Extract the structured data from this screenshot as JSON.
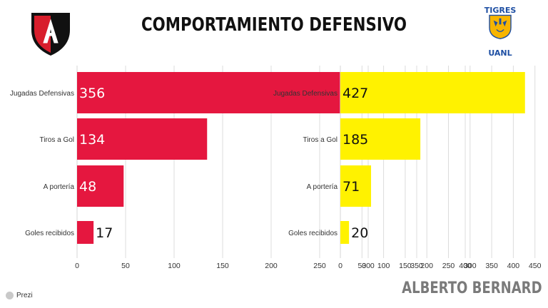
{
  "header": {
    "title": "COMPORTAMIENTO DEFENSIVO"
  },
  "logos": {
    "left_icon": "atlas-shield-logo",
    "right_icon": "tigres-uanl-logo",
    "right_top_text": "TIGRES",
    "right_bottom_text": "UANL"
  },
  "footer": {
    "prezi_label": "Prezi",
    "author": "ALBERTO BERNARD"
  },
  "colors": {
    "atlas_bar": "#e5173f",
    "tigres_bar": "#fff200",
    "grid": "#dcdcdc",
    "axis_text": "#333333"
  },
  "chart_data": [
    {
      "type": "bar",
      "orientation": "horizontal",
      "categories": [
        "Jugadas Defensivas",
        "Tiros a Gol",
        "A portería",
        "Goles recibidos"
      ],
      "values": [
        356,
        134,
        48,
        17
      ],
      "data_labels": [
        "356",
        "134",
        "48",
        "17"
      ],
      "xticks": [
        0,
        50,
        100,
        150,
        200,
        250,
        300,
        350,
        400
      ],
      "xlim": [
        0,
        400
      ],
      "grid": true,
      "color": "#e5173f"
    },
    {
      "type": "bar",
      "orientation": "horizontal",
      "categories": [
        "Jugadas Defensivas",
        "Tiros a Gol",
        "A portería",
        "Goles recibidos"
      ],
      "values": [
        427,
        185,
        71,
        20
      ],
      "data_labels": [
        "427",
        "185",
        "71",
        "20"
      ],
      "xticks": [
        0,
        50,
        100,
        150,
        200,
        250,
        300,
        350,
        400,
        450
      ],
      "xlim": [
        0,
        450
      ],
      "grid": true,
      "color": "#fff200"
    }
  ]
}
